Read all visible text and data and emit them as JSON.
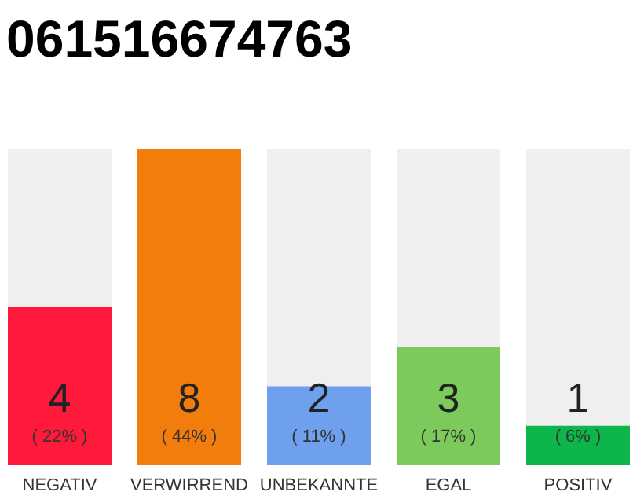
{
  "chart_data": {
    "type": "bar",
    "title": "061516674763",
    "categories": [
      "NEGATIV",
      "VERWIRREND",
      "UNBEKANNTE",
      "EGAL",
      "POSITIV"
    ],
    "values": [
      4,
      8,
      2,
      3,
      1
    ],
    "colors": [
      "#ff1a3c",
      "#f27c0c",
      "#6ea0ee",
      "#7dca5c",
      "#0cb64a"
    ],
    "ylim": [
      0,
      8
    ],
    "data_labels": true,
    "annotations": [
      "( 22% )",
      "( 44% )",
      "( 11% )",
      "( 17% )",
      "( 6% )"
    ]
  }
}
